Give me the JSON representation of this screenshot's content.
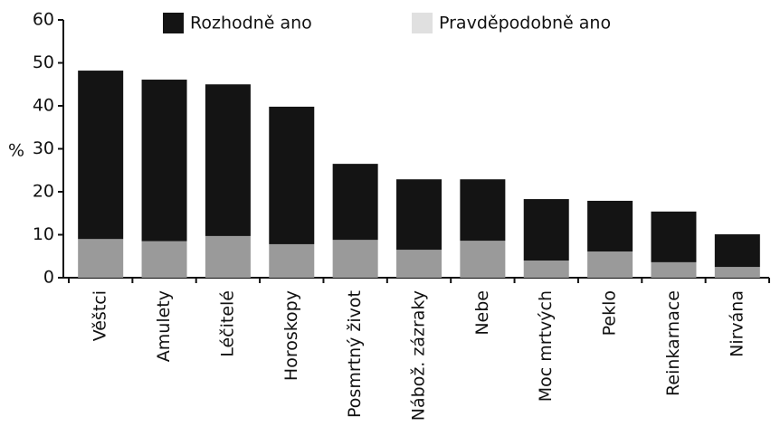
{
  "chart_data": {
    "type": "stacked_bar",
    "y_label": "%",
    "categories": [
      "Věštci",
      "Amulety",
      "Léčitelé",
      "Horoskopy",
      "Posmrtný život",
      "Nábož. zázraky",
      "Nebe",
      "Moc mrtvých",
      "Peklo",
      "Reinkarnace",
      "Nirvána"
    ],
    "series": [
      {
        "name": "Pravděpodobně ano",
        "color": "#9a9a9a",
        "values": [
          9.0,
          8.5,
          9.7,
          7.8,
          8.8,
          6.5,
          8.6,
          4.0,
          6.1,
          3.6,
          2.5
        ]
      },
      {
        "name": "Rozhodně ano",
        "color": "#141414",
        "values": [
          39.2,
          37.6,
          35.3,
          32.0,
          17.7,
          16.4,
          14.3,
          14.3,
          11.8,
          11.8,
          7.6
        ]
      }
    ],
    "ylim": [
      0,
      60
    ],
    "yticks": [
      0,
      10,
      20,
      30,
      40,
      50,
      60
    ],
    "grid": false
  }
}
